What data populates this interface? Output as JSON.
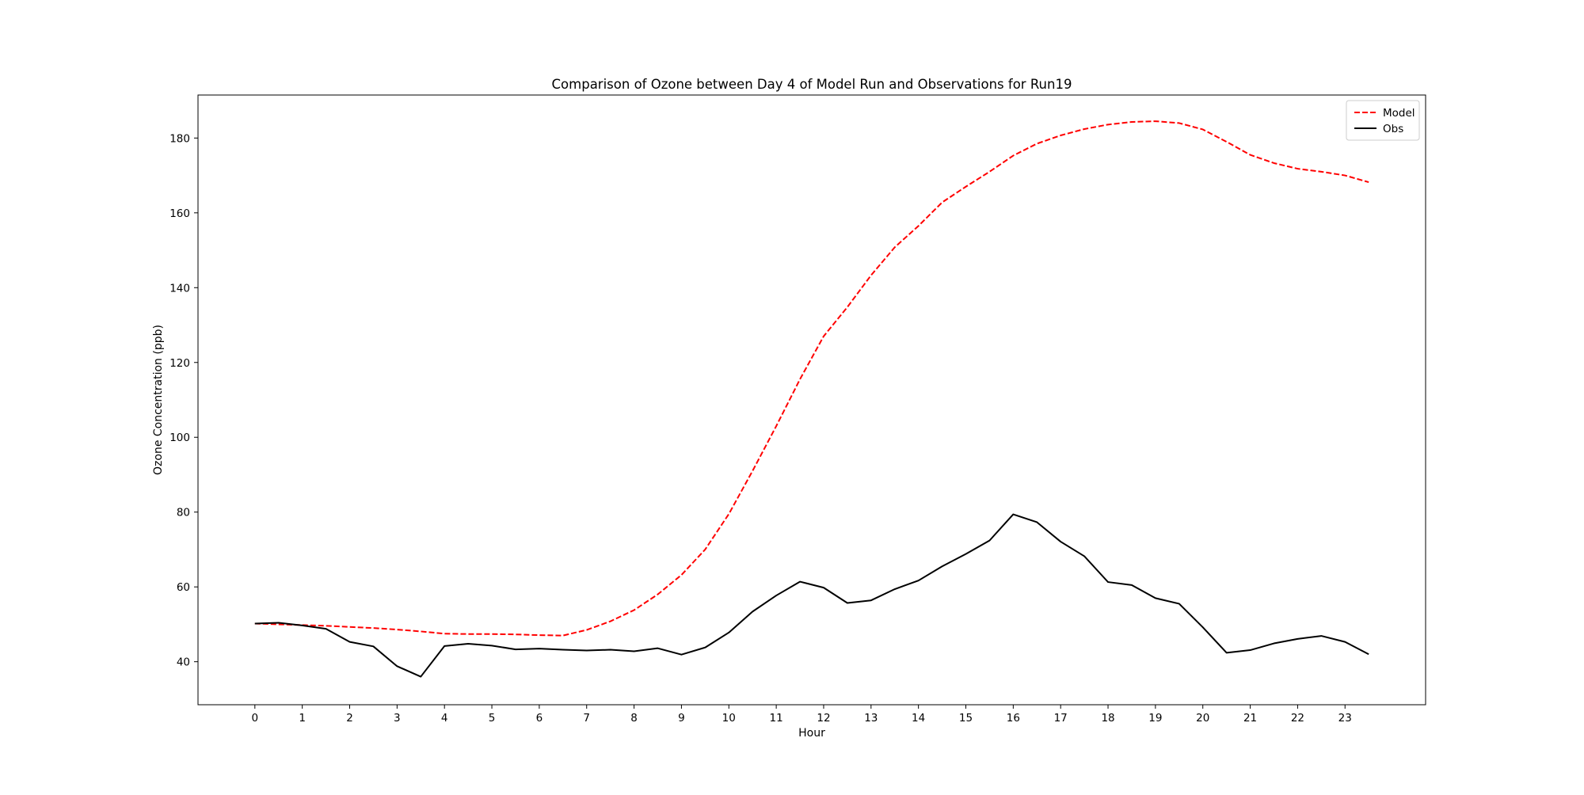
{
  "chart_data": {
    "type": "line",
    "title": "Comparison of Ozone between Day 4 of Model Run and Observations for Run19",
    "xlabel": "Hour",
    "ylabel": "Ozone Concentration (ppb)",
    "xlim": [
      -1.2,
      24.7
    ],
    "ylim": [
      28.5,
      191.5
    ],
    "xticks": [
      0,
      1,
      2,
      3,
      4,
      5,
      6,
      7,
      8,
      9,
      10,
      11,
      12,
      13,
      14,
      15,
      16,
      17,
      18,
      19,
      20,
      21,
      22,
      23
    ],
    "yticks": [
      40,
      60,
      80,
      100,
      120,
      140,
      160,
      180
    ],
    "grid": false,
    "legend_position": "top-right",
    "x": [
      0,
      0.5,
      1,
      1.5,
      2,
      2.5,
      3,
      3.5,
      4,
      4.5,
      5,
      5.5,
      6,
      6.5,
      7,
      7.5,
      8,
      8.5,
      9,
      9.5,
      10,
      10.5,
      11,
      11.5,
      12,
      12.5,
      13,
      13.5,
      14,
      14.5,
      15,
      15.5,
      16,
      16.5,
      17,
      17.5,
      18,
      18.5,
      19,
      19.5,
      20,
      20.5,
      21,
      21.5,
      22,
      22.5,
      23,
      23.5
    ],
    "series": [
      {
        "name": "Model",
        "color": "#ff0000",
        "style": "dashed",
        "values": [
          50.2,
          50.0,
          49.8,
          49.6,
          49.3,
          49.0,
          48.6,
          48.1,
          47.5,
          47.4,
          47.4,
          47.3,
          47.1,
          47.0,
          48.5,
          50.8,
          53.8,
          58.0,
          63.2,
          70.0,
          79.5,
          91.0,
          103.0,
          115.5,
          127.0,
          134.8,
          143.3,
          150.8,
          156.5,
          162.8,
          167.0,
          171.0,
          175.3,
          178.5,
          180.7,
          182.4,
          183.6,
          184.3,
          184.5,
          184.0,
          182.3,
          179.0,
          175.5,
          173.3,
          171.8,
          171.0,
          170.0,
          168.2
        ]
      },
      {
        "name": "Obs",
        "color": "#000000",
        "style": "solid",
        "values": [
          50.2,
          50.4,
          49.7,
          48.8,
          45.3,
          44.1,
          38.8,
          36.0,
          44.2,
          44.8,
          44.3,
          43.3,
          43.5,
          43.2,
          43.0,
          43.2,
          42.8,
          43.6,
          41.9,
          43.8,
          47.8,
          53.4,
          57.7,
          61.4,
          59.8,
          55.7,
          56.4,
          59.4,
          61.7,
          65.5,
          68.8,
          72.4,
          79.4,
          77.3,
          72.1,
          68.2,
          61.3,
          60.5,
          57.0,
          55.5,
          49.2,
          42.4,
          43.1,
          44.9,
          46.1,
          46.9,
          45.3,
          42.0
        ]
      }
    ]
  }
}
